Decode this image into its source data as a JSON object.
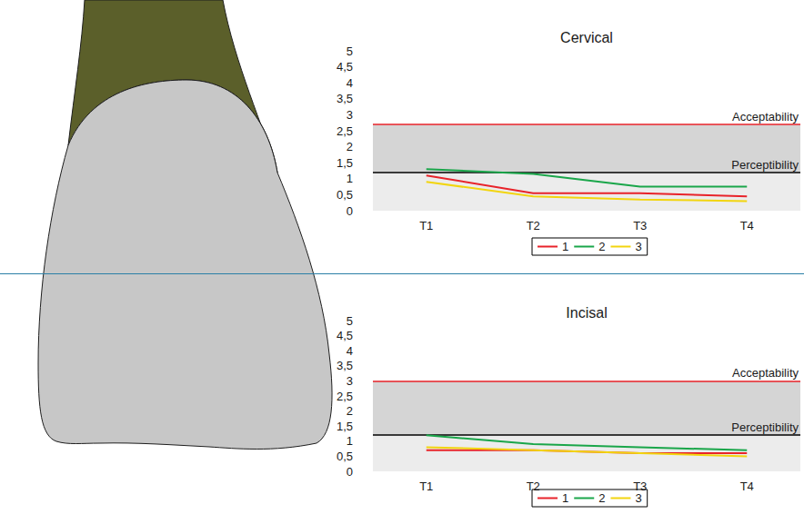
{
  "chart_data": [
    {
      "type": "line",
      "title": "Cervical",
      "categories": [
        "T1",
        "T2",
        "T3",
        "T4"
      ],
      "series": [
        {
          "name": "1",
          "color": "#e8232a",
          "values": [
            1.1,
            0.55,
            0.55,
            0.45
          ]
        },
        {
          "name": "2",
          "color": "#1aa64a",
          "values": [
            1.3,
            1.15,
            0.75,
            0.75
          ]
        },
        {
          "name": "3",
          "color": "#f2d50f",
          "values": [
            0.9,
            0.45,
            0.35,
            0.3
          ]
        }
      ],
      "ylim": [
        0,
        5
      ],
      "yticks": [
        0,
        {
          "value": 0.5,
          "label": "0,5"
        },
        1,
        {
          "value": 1.5,
          "label": "1,5"
        },
        2,
        {
          "value": 2.5,
          "label": "2,5"
        },
        3,
        {
          "value": 3.5,
          "label": "3,5"
        },
        4,
        {
          "value": 4.5,
          "label": "4,5"
        },
        5
      ],
      "annotations": [
        {
          "text": "Acceptability",
          "value": 2.7,
          "color": "#e8232a"
        },
        {
          "text": "Perceptibility",
          "value": 1.2,
          "color": "#000000"
        }
      ],
      "legend": "bottom"
    },
    {
      "type": "line",
      "title": "Incisal",
      "categories": [
        "T1",
        "T2",
        "T3",
        "T4"
      ],
      "series": [
        {
          "name": "1",
          "color": "#e8232a",
          "values": [
            0.7,
            0.7,
            0.6,
            0.6
          ]
        },
        {
          "name": "2",
          "color": "#1aa64a",
          "values": [
            1.2,
            0.9,
            0.8,
            0.7
          ]
        },
        {
          "name": "3",
          "color": "#f2d50f",
          "values": [
            0.8,
            0.7,
            0.6,
            0.5
          ]
        }
      ],
      "ylim": [
        0,
        5
      ],
      "yticks": [
        0,
        {
          "value": 0.5,
          "label": "0,5"
        },
        1,
        {
          "value": 1.5,
          "label": "1,5"
        },
        2,
        {
          "value": 2.5,
          "label": "2,5"
        },
        3,
        {
          "value": 3.5,
          "label": "3,5"
        },
        4,
        {
          "value": 4.5,
          "label": "4,5"
        },
        5
      ],
      "annotations": [
        {
          "text": "Acceptability",
          "value": 3,
          "color": "#e8232a"
        },
        {
          "text": "Perceptibility",
          "value": 1.2,
          "color": "#000000"
        }
      ],
      "legend": "bottom"
    }
  ]
}
